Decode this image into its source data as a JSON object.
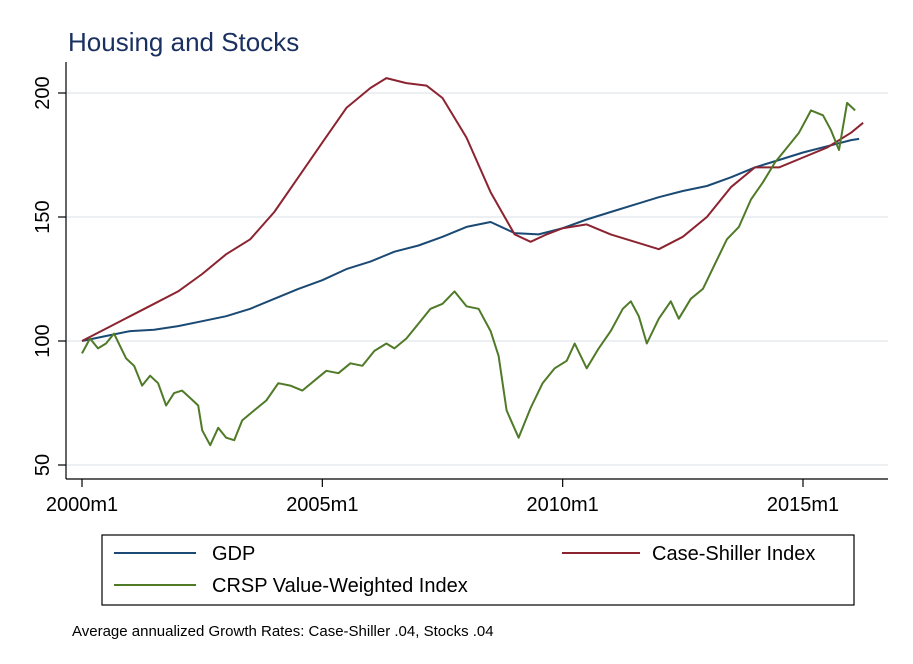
{
  "chart_data": {
    "type": "line",
    "title": "Housing and Stocks",
    "xlabel": "",
    "ylabel": "",
    "xlim": [
      "2000m1",
      "2016m4"
    ],
    "ylim": [
      50,
      210
    ],
    "grid": true,
    "legend_position": "bottom",
    "x_ticks": [
      "2000m1",
      "2005m1",
      "2010m1",
      "2015m1"
    ],
    "y_ticks": [
      50,
      100,
      150,
      200
    ],
    "note": "Average annualized Growth Rates: Case-Shiller .04, Stocks .04",
    "series": [
      {
        "name": "GDP",
        "color": "#1a4a73",
        "points": [
          [
            "2000m1",
            100
          ],
          [
            "2000m7",
            102
          ],
          [
            "2001m1",
            104
          ],
          [
            "2001m7",
            104.5
          ],
          [
            "2002m1",
            106
          ],
          [
            "2002m7",
            108
          ],
          [
            "2003m1",
            110
          ],
          [
            "2003m7",
            113
          ],
          [
            "2004m1",
            117
          ],
          [
            "2004m7",
            121
          ],
          [
            "2005m1",
            124.5
          ],
          [
            "2005m7",
            129
          ],
          [
            "2006m1",
            132
          ],
          [
            "2006m7",
            136
          ],
          [
            "2007m1",
            138.5
          ],
          [
            "2007m7",
            142
          ],
          [
            "2008m1",
            146
          ],
          [
            "2008m7",
            148
          ],
          [
            "2009m1",
            143.5
          ],
          [
            "2009m7",
            143
          ],
          [
            "2010m1",
            145.5
          ],
          [
            "2010m7",
            149
          ],
          [
            "2011m1",
            152
          ],
          [
            "2011m7",
            155
          ],
          [
            "2012m1",
            158
          ],
          [
            "2012m7",
            160.5
          ],
          [
            "2013m1",
            162.5
          ],
          [
            "2013m7",
            166
          ],
          [
            "2014m1",
            170
          ],
          [
            "2014m7",
            173
          ],
          [
            "2015m1",
            176
          ],
          [
            "2015m7",
            178.5
          ],
          [
            "2016m1",
            181
          ],
          [
            "2016m3",
            181.5
          ]
        ]
      },
      {
        "name": "Case-Shiller Index",
        "color": "#8b2430",
        "points": [
          [
            "2000m1",
            100
          ],
          [
            "2000m7",
            105
          ],
          [
            "2001m1",
            110
          ],
          [
            "2001m7",
            115
          ],
          [
            "2002m1",
            120
          ],
          [
            "2002m7",
            127
          ],
          [
            "2003m1",
            135
          ],
          [
            "2003m7",
            141
          ],
          [
            "2004m1",
            152
          ],
          [
            "2004m7",
            166
          ],
          [
            "2005m1",
            180
          ],
          [
            "2005m7",
            194
          ],
          [
            "2006m1",
            202
          ],
          [
            "2006m5",
            206
          ],
          [
            "2006m10",
            204
          ],
          [
            "2007m3",
            203
          ],
          [
            "2007m7",
            198
          ],
          [
            "2008m1",
            182
          ],
          [
            "2008m7",
            160
          ],
          [
            "2009m1",
            143
          ],
          [
            "2009m5",
            140
          ],
          [
            "2009m9",
            143
          ],
          [
            "2010m1",
            145.5
          ],
          [
            "2010m7",
            147
          ],
          [
            "2011m1",
            143
          ],
          [
            "2011m7",
            140
          ],
          [
            "2012m1",
            137
          ],
          [
            "2012m7",
            142
          ],
          [
            "2013m1",
            150
          ],
          [
            "2013m7",
            162
          ],
          [
            "2014m1",
            170
          ],
          [
            "2014m7",
            170
          ],
          [
            "2015m1",
            174
          ],
          [
            "2015m7",
            178
          ],
          [
            "2016m1",
            184
          ],
          [
            "2016m4",
            188
          ]
        ]
      },
      {
        "name": "CRSP Value-Weighted Index",
        "color": "#4f7a28",
        "points": [
          [
            "2000m1",
            95
          ],
          [
            "2000m3",
            101
          ],
          [
            "2000m5",
            97
          ],
          [
            "2000m7",
            99
          ],
          [
            "2000m9",
            103
          ],
          [
            "2000m12",
            93
          ],
          [
            "2001m2",
            90
          ],
          [
            "2001m4",
            82
          ],
          [
            "2001m6",
            86
          ],
          [
            "2001m8",
            83
          ],
          [
            "2001m10",
            74
          ],
          [
            "2001m12",
            79
          ],
          [
            "2002m2",
            80
          ],
          [
            "2002m4",
            77
          ],
          [
            "2002m6",
            74
          ],
          [
            "2002m7",
            64
          ],
          [
            "2002m9",
            58
          ],
          [
            "2002m11",
            65
          ],
          [
            "2003m1",
            61
          ],
          [
            "2003m3",
            60
          ],
          [
            "2003m5",
            68
          ],
          [
            "2003m8",
            72
          ],
          [
            "2003m11",
            76
          ],
          [
            "2004m2",
            83
          ],
          [
            "2004m5",
            82
          ],
          [
            "2004m8",
            80
          ],
          [
            "2004m11",
            84
          ],
          [
            "2005m2",
            88
          ],
          [
            "2005m5",
            87
          ],
          [
            "2005m8",
            91
          ],
          [
            "2005m11",
            90
          ],
          [
            "2006m2",
            96
          ],
          [
            "2006m5",
            99
          ],
          [
            "2006m7",
            97
          ],
          [
            "2006m10",
            101
          ],
          [
            "2007m1",
            107
          ],
          [
            "2007m4",
            113
          ],
          [
            "2007m7",
            115
          ],
          [
            "2007m10",
            120
          ],
          [
            "2008m1",
            114
          ],
          [
            "2008m4",
            113
          ],
          [
            "2008m7",
            104
          ],
          [
            "2008m9",
            94
          ],
          [
            "2008m11",
            72
          ],
          [
            "2009m2",
            61
          ],
          [
            "2009m5",
            73
          ],
          [
            "2009m8",
            83
          ],
          [
            "2009m11",
            89
          ],
          [
            "2010m2",
            92
          ],
          [
            "2010m4",
            99
          ],
          [
            "2010m7",
            89
          ],
          [
            "2010m10",
            97
          ],
          [
            "2011m1",
            104
          ],
          [
            "2011m4",
            113
          ],
          [
            "2011m6",
            116
          ],
          [
            "2011m8",
            110
          ],
          [
            "2011m10",
            99
          ],
          [
            "2012m1",
            109
          ],
          [
            "2012m4",
            116
          ],
          [
            "2012m6",
            109
          ],
          [
            "2012m9",
            117
          ],
          [
            "2012m12",
            121
          ],
          [
            "2013m3",
            131
          ],
          [
            "2013m6",
            141
          ],
          [
            "2013m9",
            146
          ],
          [
            "2013m12",
            157
          ],
          [
            "2014m3",
            164
          ],
          [
            "2014m6",
            172
          ],
          [
            "2014m9",
            178
          ],
          [
            "2014m12",
            184
          ],
          [
            "2015m3",
            193
          ],
          [
            "2015m6",
            191
          ],
          [
            "2015m8",
            185
          ],
          [
            "2015m10",
            177
          ],
          [
            "2015m12",
            196
          ],
          [
            "2016m2",
            193
          ]
        ]
      }
    ]
  }
}
